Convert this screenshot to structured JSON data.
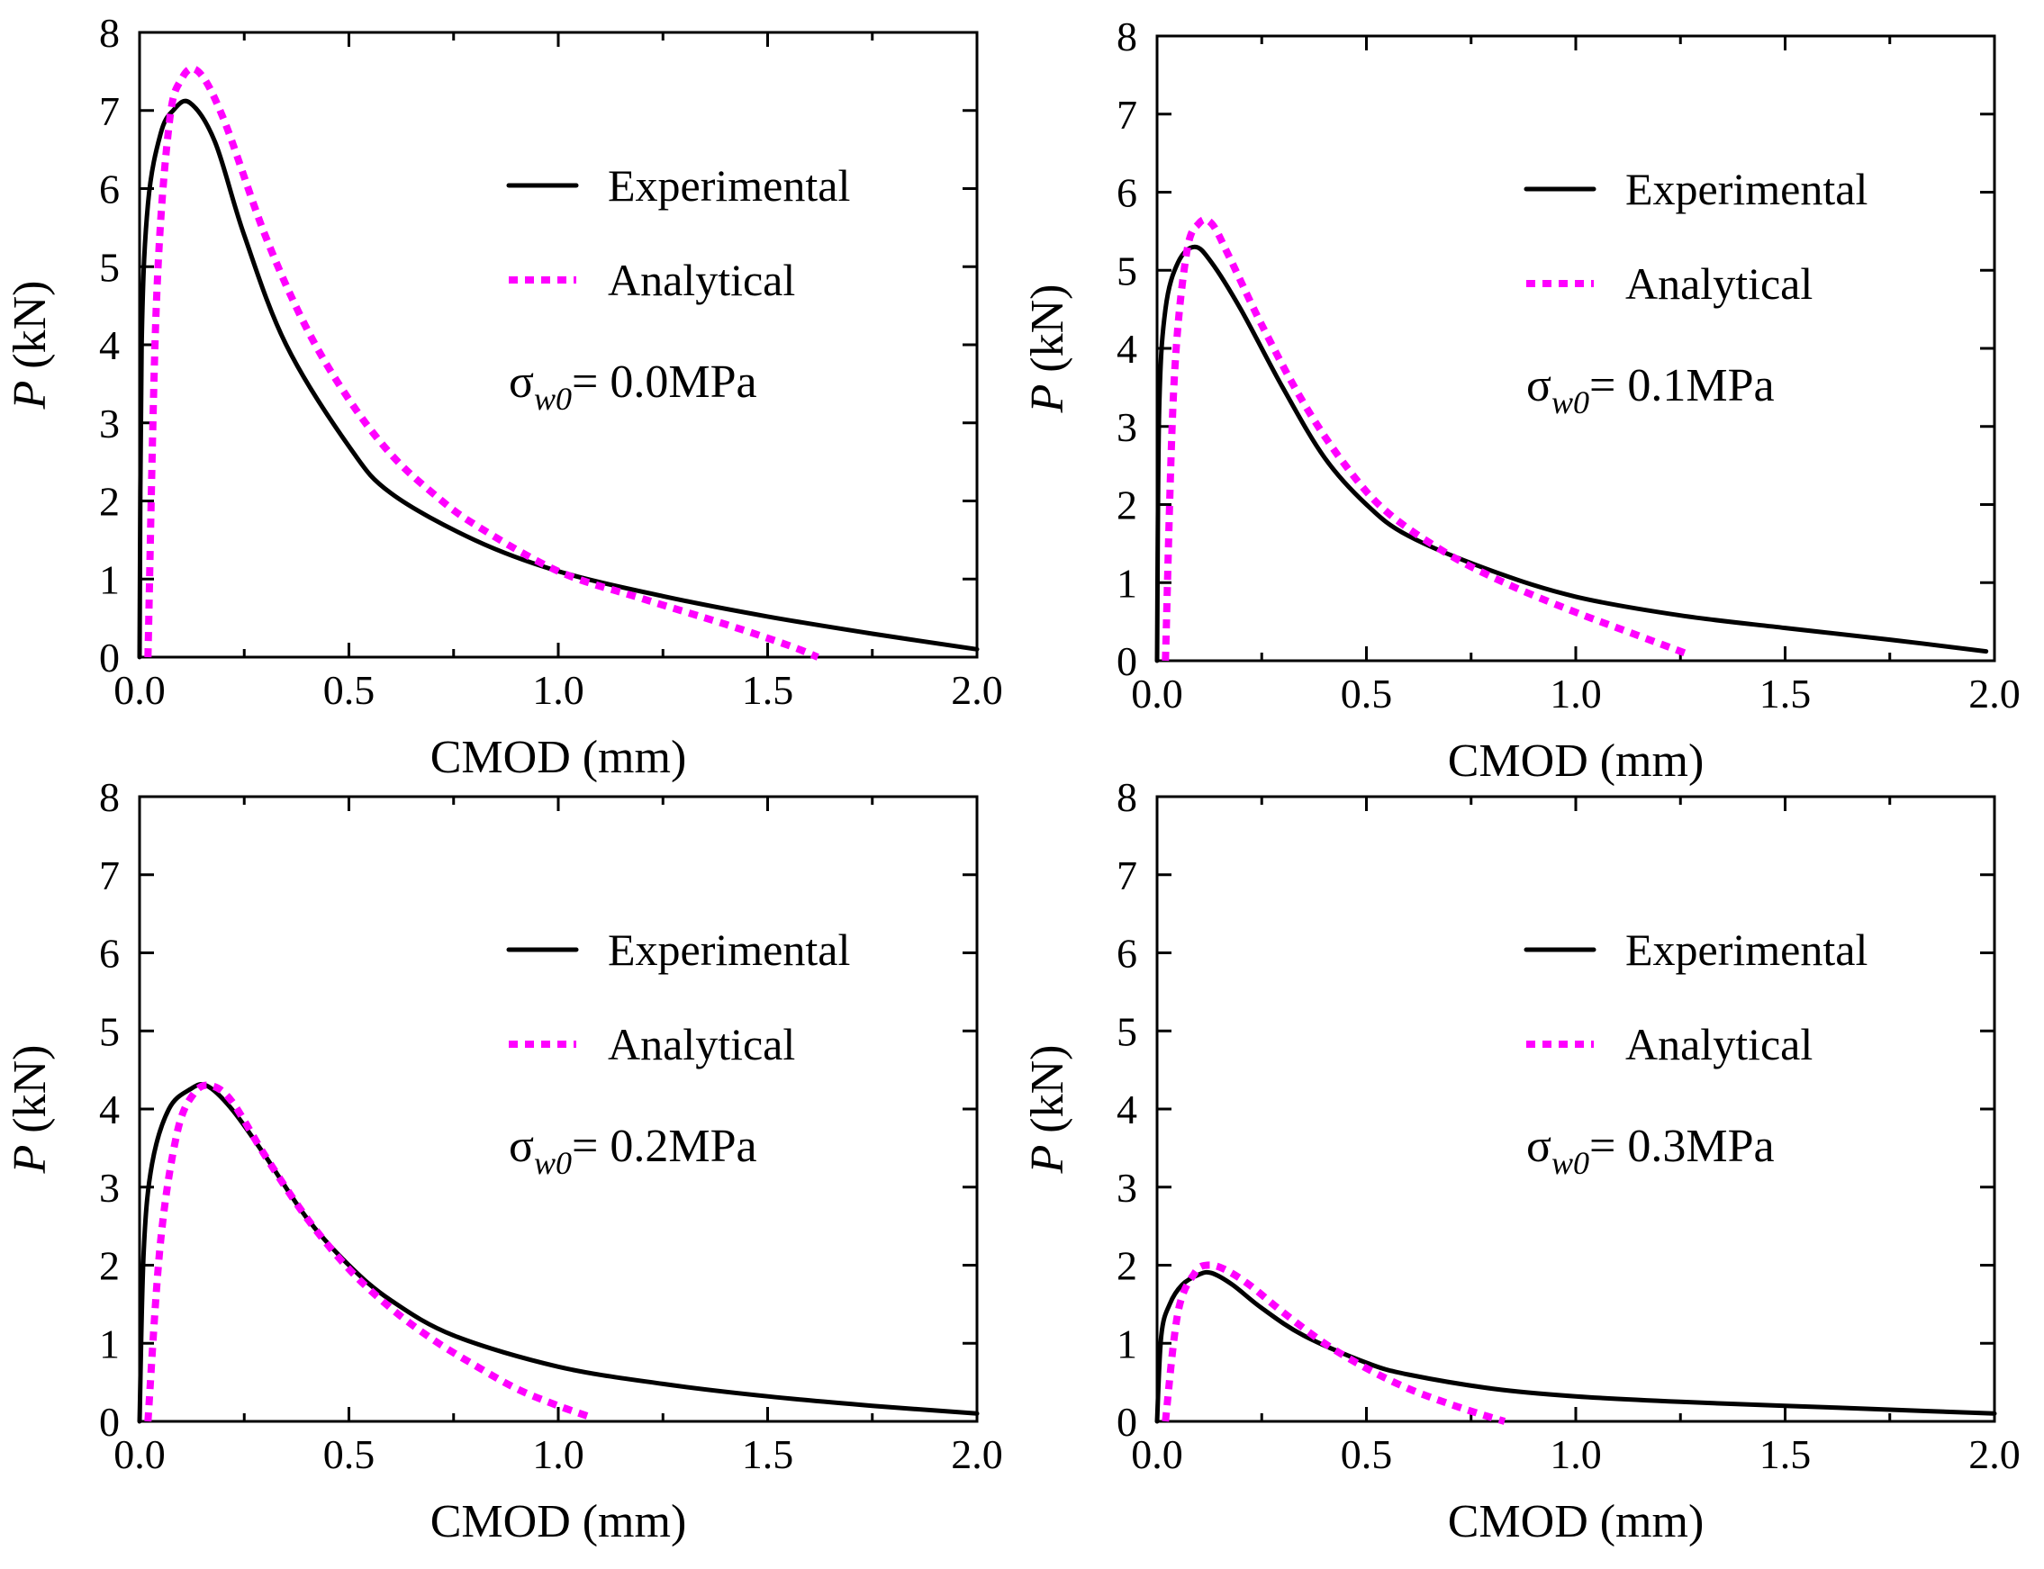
{
  "chart_data": [
    {
      "type": "line",
      "xlabel": "CMOD (mm)",
      "ylabel": "P (kN)",
      "xlim": [
        0,
        2.0
      ],
      "ylim": [
        0,
        8
      ],
      "xticks": [
        "0.0",
        "0.5",
        "1.0",
        "1.5",
        "2.0"
      ],
      "yticks": [
        "0",
        "1",
        "2",
        "3",
        "4",
        "5",
        "6",
        "7",
        "8"
      ],
      "legend": [
        "Experimental",
        "Analytical"
      ],
      "annotation": {
        "symbol": "σ",
        "subscript": "w0",
        "value": "= 0.0MPa"
      },
      "series": [
        {
          "name": "Experimental",
          "color": "#000000",
          "x": [
            0,
            0.005,
            0.02,
            0.05,
            0.08,
            0.12,
            0.18,
            0.25,
            0.35,
            0.5,
            0.6,
            0.8,
            1.0,
            1.25,
            1.5,
            1.75,
            2.0
          ],
          "y": [
            0,
            4.0,
            5.8,
            6.7,
            7.0,
            7.1,
            6.6,
            5.4,
            4.0,
            2.7,
            2.1,
            1.5,
            1.1,
            0.78,
            0.52,
            0.3,
            0.1
          ]
        },
        {
          "name": "Analytical",
          "color": "#ff00ff",
          "x": [
            0.02,
            0.04,
            0.07,
            0.1,
            0.14,
            0.2,
            0.3,
            0.4,
            0.5,
            0.6,
            0.7,
            0.8,
            1.0,
            1.2,
            1.4,
            1.55,
            1.62
          ],
          "y": [
            0,
            4.5,
            6.8,
            7.4,
            7.5,
            6.9,
            5.4,
            4.2,
            3.3,
            2.6,
            2.1,
            1.7,
            1.1,
            0.75,
            0.42,
            0.15,
            0.0
          ]
        }
      ]
    },
    {
      "type": "line",
      "xlabel": "CMOD (mm)",
      "ylabel": "P (kN)",
      "xlim": [
        0,
        2.0
      ],
      "ylim": [
        0,
        8
      ],
      "xticks": [
        "0.0",
        "0.5",
        "1.0",
        "1.5",
        "2.0"
      ],
      "yticks": [
        "0",
        "1",
        "2",
        "3",
        "4",
        "5",
        "6",
        "7",
        "8"
      ],
      "legend": [
        "Experimental",
        "Analytical"
      ],
      "annotation": {
        "symbol": "σ",
        "subscript": "w0",
        "value": "= 0.1MPa"
      },
      "series": [
        {
          "name": "Experimental",
          "color": "#000000",
          "x": [
            0,
            0.005,
            0.02,
            0.05,
            0.09,
            0.13,
            0.2,
            0.3,
            0.4,
            0.5,
            0.6,
            0.8,
            1.0,
            1.25,
            1.5,
            1.75,
            1.98
          ],
          "y": [
            0,
            3.2,
            4.5,
            5.1,
            5.3,
            5.1,
            4.5,
            3.5,
            2.6,
            2.0,
            1.6,
            1.15,
            0.82,
            0.58,
            0.42,
            0.27,
            0.12
          ]
        },
        {
          "name": "Analytical",
          "color": "#ff00ff",
          "x": [
            0.02,
            0.04,
            0.07,
            0.1,
            0.13,
            0.17,
            0.25,
            0.35,
            0.45,
            0.55,
            0.7,
            0.85,
            1.0,
            1.1,
            1.2,
            1.26
          ],
          "y": [
            0,
            3.5,
            5.2,
            5.6,
            5.6,
            5.2,
            4.3,
            3.3,
            2.5,
            1.9,
            1.35,
            0.95,
            0.62,
            0.42,
            0.22,
            0.1
          ]
        }
      ]
    },
    {
      "type": "line",
      "xlabel": "CMOD (mm)",
      "ylabel": "P (kN)",
      "xlim": [
        0,
        2.0
      ],
      "ylim": [
        0,
        8
      ],
      "xticks": [
        "0.0",
        "0.5",
        "1.0",
        "1.5",
        "2.0"
      ],
      "yticks": [
        "0",
        "1",
        "2",
        "3",
        "4",
        "5",
        "6",
        "7",
        "8"
      ],
      "legend": [
        "Experimental",
        "Analytical"
      ],
      "annotation": {
        "symbol": "σ",
        "subscript": "w0",
        "value": "= 0.2MPa"
      },
      "series": [
        {
          "name": "Experimental",
          "color": "#000000",
          "x": [
            0,
            0.01,
            0.03,
            0.07,
            0.12,
            0.16,
            0.22,
            0.3,
            0.4,
            0.5,
            0.6,
            0.75,
            1.0,
            1.25,
            1.5,
            1.75,
            2.0
          ],
          "y": [
            0,
            2.2,
            3.3,
            4.0,
            4.25,
            4.3,
            4.0,
            3.4,
            2.6,
            2.0,
            1.55,
            1.1,
            0.7,
            0.48,
            0.32,
            0.2,
            0.1
          ]
        },
        {
          "name": "Analytical",
          "color": "#ff00ff",
          "x": [
            0.02,
            0.05,
            0.09,
            0.13,
            0.17,
            0.22,
            0.3,
            0.4,
            0.5,
            0.6,
            0.7,
            0.8,
            0.9,
            1.0,
            1.08
          ],
          "y": [
            0,
            2.3,
            3.7,
            4.2,
            4.3,
            4.1,
            3.4,
            2.6,
            1.95,
            1.45,
            1.05,
            0.72,
            0.42,
            0.2,
            0.05
          ]
        }
      ]
    },
    {
      "type": "line",
      "xlabel": "CMOD (mm)",
      "ylabel": "P (kN)",
      "xlim": [
        0,
        2.0
      ],
      "ylim": [
        0,
        8
      ],
      "xticks": [
        "0.0",
        "0.5",
        "1.0",
        "1.5",
        "2.0"
      ],
      "yticks": [
        "0",
        "1",
        "2",
        "3",
        "4",
        "5",
        "6",
        "7",
        "8"
      ],
      "legend": [
        "Experimental",
        "Analytical"
      ],
      "annotation": {
        "symbol": "σ",
        "subscript": "w0",
        "value": "= 0.3MPa"
      },
      "series": [
        {
          "name": "Experimental",
          "color": "#000000",
          "x": [
            0,
            0.01,
            0.03,
            0.06,
            0.1,
            0.13,
            0.18,
            0.25,
            0.35,
            0.5,
            0.6,
            0.8,
            1.0,
            1.25,
            1.5,
            1.75,
            2.0
          ],
          "y": [
            0,
            1.1,
            1.5,
            1.75,
            1.88,
            1.9,
            1.75,
            1.45,
            1.1,
            0.75,
            0.6,
            0.42,
            0.32,
            0.25,
            0.2,
            0.15,
            0.1
          ]
        },
        {
          "name": "Analytical",
          "color": "#ff00ff",
          "x": [
            0.02,
            0.05,
            0.09,
            0.12,
            0.16,
            0.22,
            0.3,
            0.4,
            0.5,
            0.6,
            0.7,
            0.78,
            0.83
          ],
          "y": [
            0,
            1.4,
            1.9,
            2.0,
            1.95,
            1.75,
            1.4,
            1.0,
            0.68,
            0.42,
            0.22,
            0.08,
            0.0
          ]
        }
      ]
    }
  ]
}
